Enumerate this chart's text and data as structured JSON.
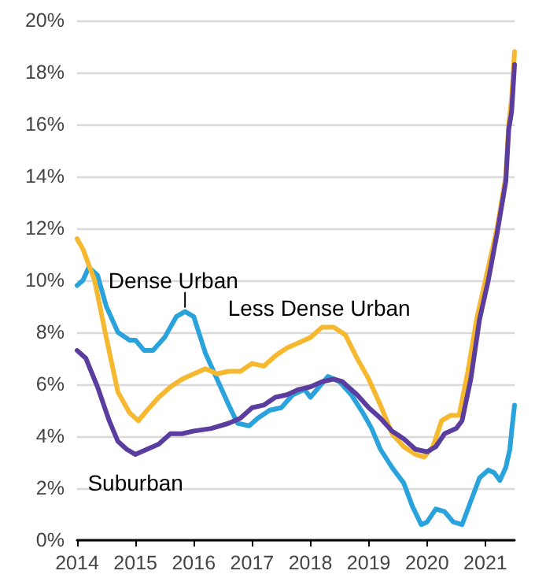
{
  "chart_data": {
    "type": "line",
    "xlim": [
      2014,
      2021.5
    ],
    "xticks": [
      2014,
      2015,
      2016,
      2017,
      2018,
      2019,
      2020,
      2021
    ],
    "ylim": [
      0,
      20
    ],
    "yticks": [
      {
        "value": 0,
        "label": "0%"
      },
      {
        "value": 2,
        "label": "2%"
      },
      {
        "value": 4,
        "label": "4%"
      },
      {
        "value": 6,
        "label": "6%"
      },
      {
        "value": 8,
        "label": "8%"
      },
      {
        "value": 10,
        "label": "10%"
      },
      {
        "value": 12,
        "label": "12%"
      },
      {
        "value": 14,
        "label": "14%"
      },
      {
        "value": 16,
        "label": "16%"
      },
      {
        "value": 18,
        "label": "18%"
      },
      {
        "value": 20,
        "label": "20%"
      }
    ],
    "grid": "y",
    "legend": false,
    "marker": "none",
    "line_style": "solid",
    "series": [
      {
        "name": "Dense Urban",
        "color": "#2aa3dc",
        "x": [
          2014.0,
          2014.1,
          2014.2,
          2014.35,
          2014.5,
          2014.7,
          2014.9,
          2015.0,
          2015.15,
          2015.3,
          2015.5,
          2015.7,
          2015.85,
          2016.0,
          2016.2,
          2016.4,
          2016.6,
          2016.75,
          2016.95,
          2017.1,
          2017.3,
          2017.5,
          2017.7,
          2017.9,
          2018.0,
          2018.15,
          2018.3,
          2018.5,
          2018.7,
          2018.9,
          2019.05,
          2019.2,
          2019.4,
          2019.6,
          2019.75,
          2019.9,
          2020.0,
          2020.15,
          2020.3,
          2020.45,
          2020.6,
          2020.75,
          2020.9,
          2021.05,
          2021.15,
          2021.25,
          2021.35,
          2021.42,
          2021.45,
          2021.5
        ],
        "values": [
          9.8,
          10.0,
          10.5,
          10.2,
          9.0,
          8.0,
          7.7,
          7.7,
          7.3,
          7.3,
          7.8,
          8.6,
          8.8,
          8.6,
          7.2,
          6.2,
          5.2,
          4.5,
          4.4,
          4.7,
          5.0,
          5.1,
          5.6,
          5.8,
          5.5,
          5.9,
          6.3,
          6.1,
          5.6,
          4.9,
          4.3,
          3.5,
          2.8,
          2.2,
          1.3,
          0.6,
          0.7,
          1.2,
          1.1,
          0.7,
          0.6,
          1.5,
          2.4,
          2.7,
          2.6,
          2.3,
          2.8,
          3.5,
          4.2,
          5.2
        ]
      },
      {
        "name": "Less Dense Urban",
        "color": "#f5b82e",
        "x": [
          2014.0,
          2014.1,
          2014.3,
          2014.5,
          2014.7,
          2014.9,
          2015.05,
          2015.2,
          2015.4,
          2015.6,
          2015.8,
          2016.0,
          2016.2,
          2016.4,
          2016.6,
          2016.8,
          2017.0,
          2017.2,
          2017.4,
          2017.6,
          2017.8,
          2018.0,
          2018.2,
          2018.4,
          2018.6,
          2018.8,
          2019.0,
          2019.2,
          2019.4,
          2019.6,
          2019.8,
          2019.95,
          2020.1,
          2020.25,
          2020.4,
          2020.55,
          2020.7,
          2020.85,
          2021.0,
          2021.2,
          2021.35,
          2021.4,
          2021.45,
          2021.5
        ],
        "values": [
          11.6,
          11.2,
          10.0,
          7.8,
          5.7,
          4.9,
          4.6,
          5.0,
          5.5,
          5.9,
          6.2,
          6.4,
          6.6,
          6.4,
          6.5,
          6.5,
          6.8,
          6.7,
          7.1,
          7.4,
          7.6,
          7.8,
          8.2,
          8.2,
          7.9,
          7.0,
          6.2,
          5.2,
          4.1,
          3.6,
          3.3,
          3.2,
          3.6,
          4.6,
          4.8,
          4.8,
          6.5,
          8.5,
          10.0,
          12.0,
          14.0,
          16.0,
          17.0,
          18.8
        ]
      },
      {
        "name": "Suburban",
        "color": "#5a3d9e",
        "x": [
          2014.0,
          2014.15,
          2014.35,
          2014.55,
          2014.7,
          2014.85,
          2015.0,
          2015.2,
          2015.4,
          2015.6,
          2015.8,
          2016.0,
          2016.3,
          2016.6,
          2016.8,
          2017.0,
          2017.2,
          2017.4,
          2017.6,
          2017.8,
          2018.0,
          2018.2,
          2018.4,
          2018.55,
          2018.8,
          2019.0,
          2019.2,
          2019.4,
          2019.6,
          2019.8,
          2020.0,
          2020.15,
          2020.3,
          2020.5,
          2020.6,
          2020.75,
          2020.9,
          2021.05,
          2021.2,
          2021.35,
          2021.4,
          2021.45,
          2021.5
        ],
        "values": [
          7.3,
          7.0,
          5.9,
          4.6,
          3.8,
          3.5,
          3.3,
          3.5,
          3.7,
          4.1,
          4.1,
          4.2,
          4.3,
          4.5,
          4.7,
          5.1,
          5.2,
          5.5,
          5.6,
          5.8,
          5.9,
          6.1,
          6.2,
          6.1,
          5.6,
          5.1,
          4.7,
          4.2,
          3.9,
          3.5,
          3.4,
          3.6,
          4.1,
          4.3,
          4.6,
          6.2,
          8.5,
          10.0,
          11.8,
          13.8,
          15.8,
          16.5,
          18.3
        ]
      }
    ]
  }
}
